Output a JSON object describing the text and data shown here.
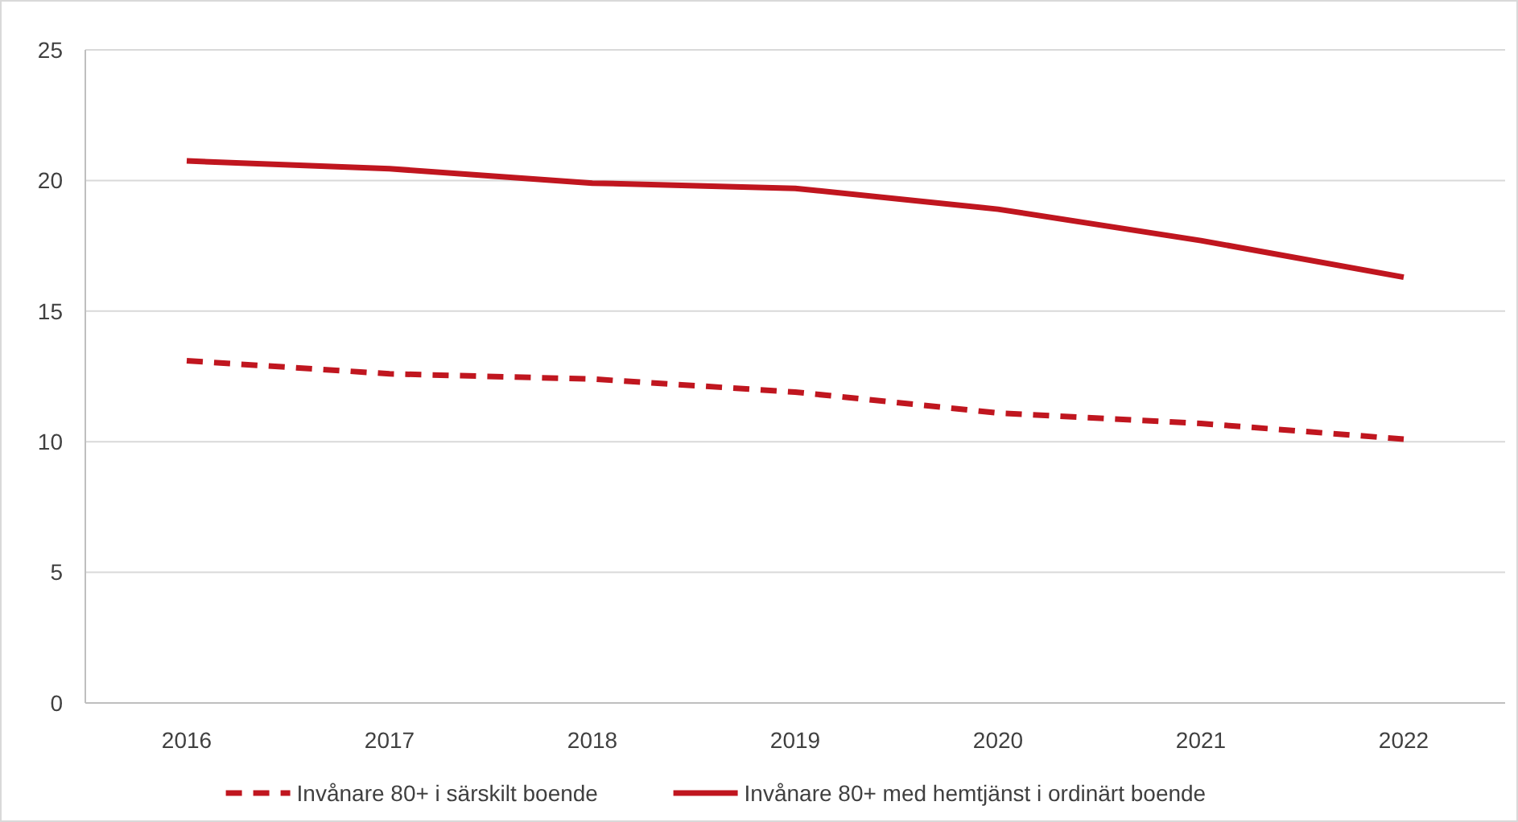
{
  "chart_data": {
    "type": "line",
    "categories": [
      "2016",
      "2017",
      "2018",
      "2019",
      "2020",
      "2021",
      "2022"
    ],
    "series": [
      {
        "name": "Invånare 80+ i särskilt boende",
        "color": "#c0161f",
        "line_style": "dashed",
        "values": [
          13.1,
          12.6,
          12.4,
          11.9,
          11.1,
          10.7,
          10.1
        ]
      },
      {
        "name": "Invånare 80+ med hemtjänst i ordinärt boende",
        "color": "#c0161f",
        "line_style": "solid",
        "values": [
          20.75,
          20.45,
          19.9,
          19.7,
          18.9,
          17.7,
          16.3
        ]
      }
    ],
    "ylim": [
      0,
      25
    ],
    "yticks": [
      0,
      5,
      10,
      15,
      20,
      25
    ],
    "grid": "y",
    "legend": "bottom",
    "marker": "none"
  }
}
